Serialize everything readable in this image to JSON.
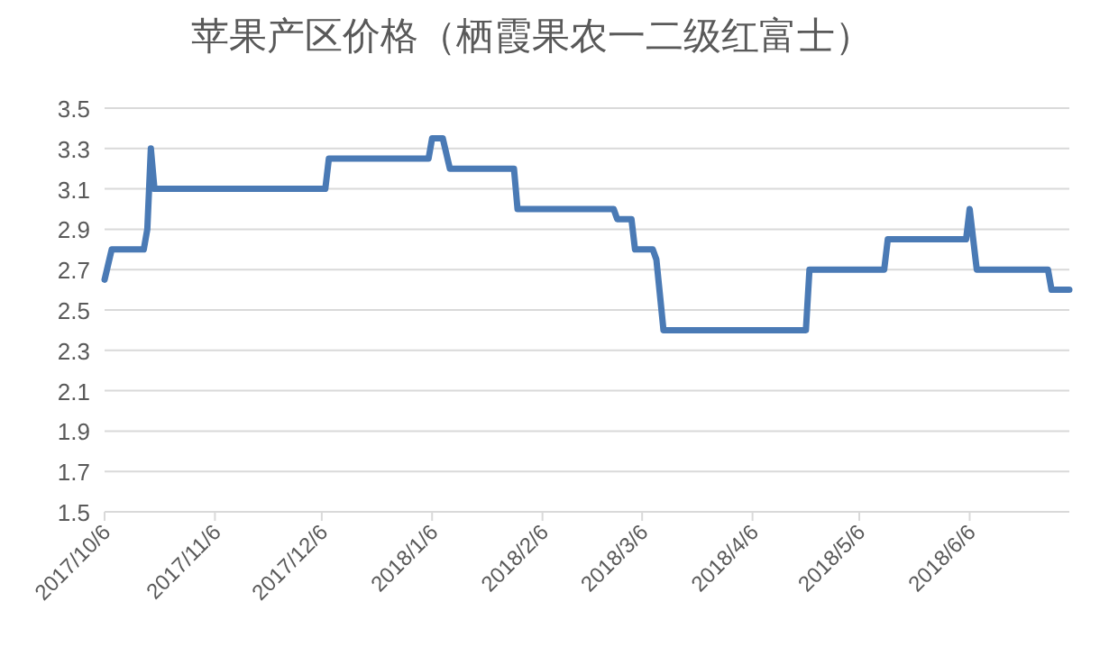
{
  "chart_data": {
    "type": "line",
    "title": "苹果产区价格（栖霞果农一二级红富士）",
    "color": "#4a7ab5",
    "x": [
      "2017-10-06",
      "2017-10-08",
      "2017-10-17",
      "2017-10-18",
      "2017-10-19",
      "2017-10-20",
      "2017-12-07",
      "2017-12-08",
      "2018-01-05",
      "2018-01-06",
      "2018-01-09",
      "2018-01-11",
      "2018-01-29",
      "2018-01-30",
      "2018-02-26",
      "2018-02-27",
      "2018-03-03",
      "2018-03-04",
      "2018-03-09",
      "2018-03-10",
      "2018-03-12",
      "2018-04-21",
      "2018-04-22",
      "2018-05-13",
      "2018-05-14",
      "2018-06-05",
      "2018-06-06",
      "2018-06-08",
      "2018-06-28",
      "2018-06-29",
      "2018-07-04"
    ],
    "values": [
      2.65,
      2.8,
      2.8,
      2.9,
      3.3,
      3.1,
      3.1,
      3.25,
      3.25,
      3.35,
      3.35,
      3.2,
      3.2,
      3.0,
      3.0,
      2.95,
      2.95,
      2.8,
      2.8,
      2.75,
      2.4,
      2.4,
      2.7,
      2.7,
      2.85,
      2.85,
      3.0,
      2.7,
      2.7,
      2.6,
      2.6
    ],
    "xlim": [
      "2017-10-06",
      "2018-07-04"
    ],
    "xticks": [
      {
        "value": "2017-10-06",
        "label": "2017/10/6"
      },
      {
        "value": "2017-11-06",
        "label": "2017/11/6"
      },
      {
        "value": "2017-12-06",
        "label": "2017/12/6"
      },
      {
        "value": "2018-01-06",
        "label": "2018/1/6"
      },
      {
        "value": "2018-02-06",
        "label": "2018/2/6"
      },
      {
        "value": "2018-03-06",
        "label": "2018/3/6"
      },
      {
        "value": "2018-04-06",
        "label": "2018/4/6"
      },
      {
        "value": "2018-05-06",
        "label": "2018/5/6"
      },
      {
        "value": "2018-06-06",
        "label": "2018/6/6"
      }
    ],
    "ylim": [
      1.5,
      3.5
    ],
    "yticks": [
      {
        "value": 1.5,
        "label": "1.5"
      },
      {
        "value": 1.7,
        "label": "1.7"
      },
      {
        "value": 1.9,
        "label": "1.9"
      },
      {
        "value": 2.1,
        "label": "2.1"
      },
      {
        "value": 2.3,
        "label": "2.3"
      },
      {
        "value": 2.5,
        "label": "2.5"
      },
      {
        "value": 2.7,
        "label": "2.7"
      },
      {
        "value": 2.9,
        "label": "2.9"
      },
      {
        "value": 3.1,
        "label": "3.1"
      },
      {
        "value": 3.3,
        "label": "3.3"
      },
      {
        "value": 3.5,
        "label": "3.5"
      }
    ],
    "grid": "y"
  }
}
